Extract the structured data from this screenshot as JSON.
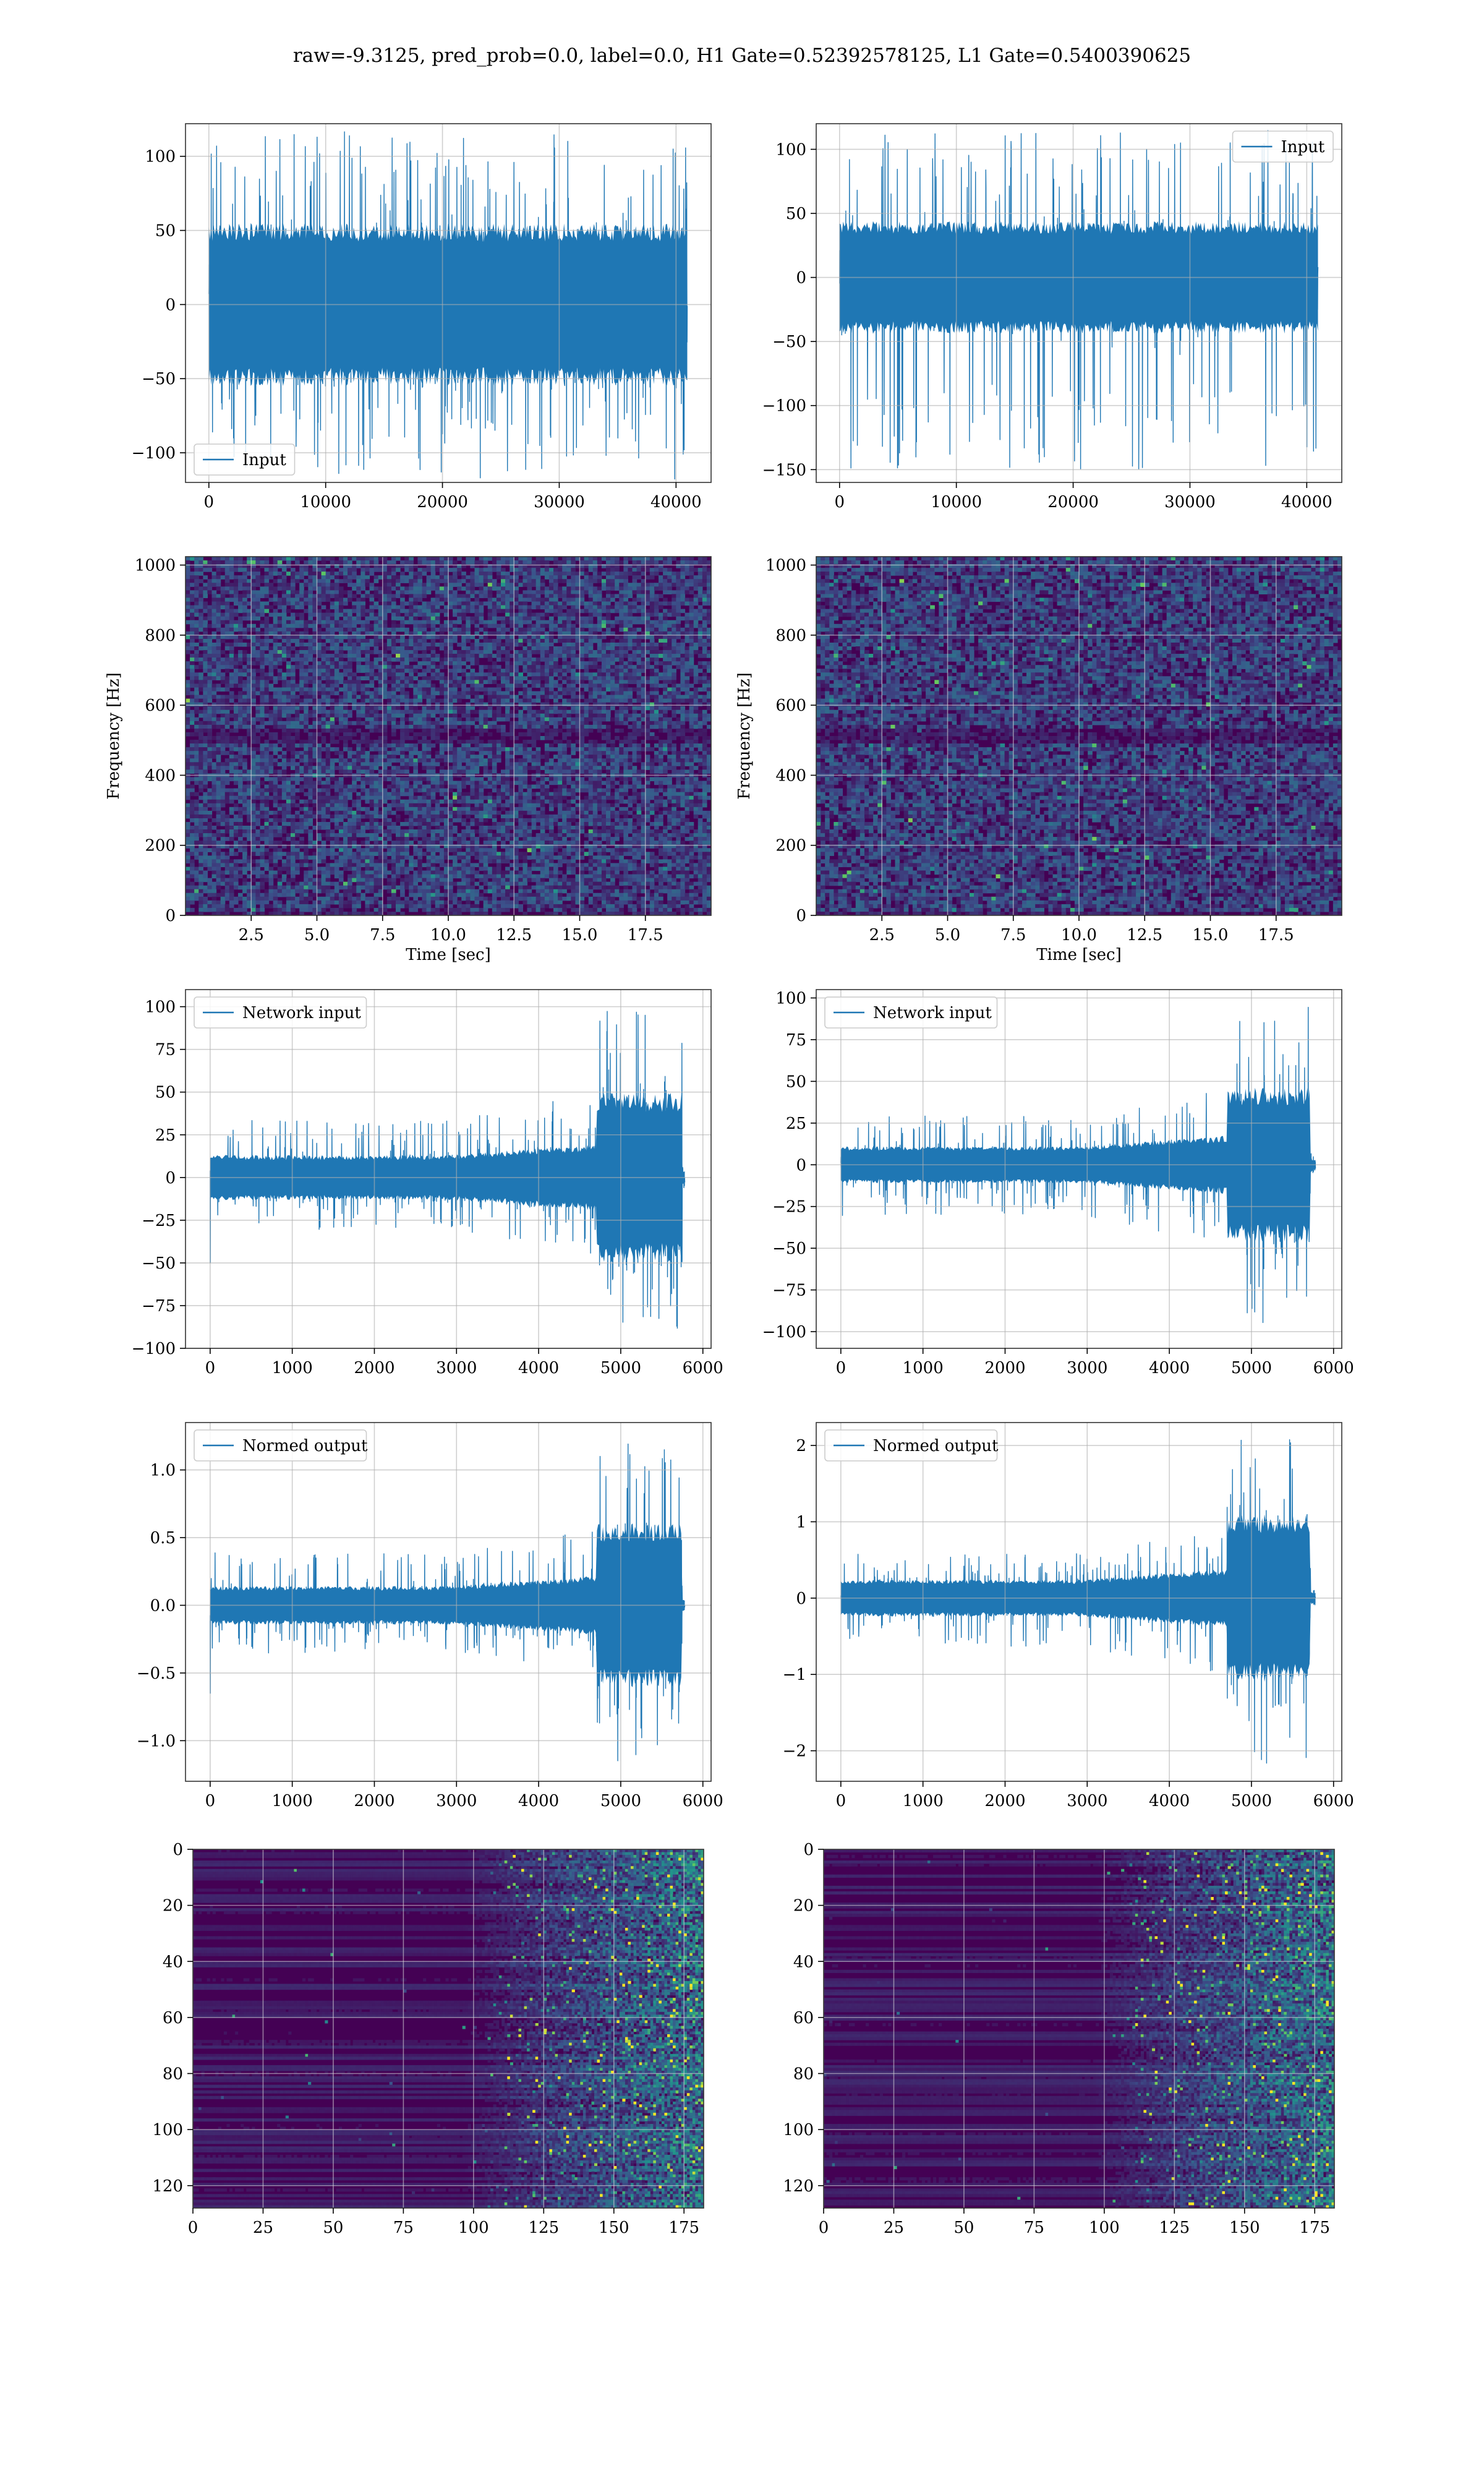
{
  "figure": {
    "suptitle": "raw=-9.3125, pred_prob=0.0, label=0.0, H1 Gate=0.52392578125, L1 Gate=0.5400390625",
    "colors": {
      "line": "#1f77b4",
      "grid": "#b0b0b0",
      "viridis": [
        "#440154",
        "#3b528b",
        "#21918c",
        "#5ec962",
        "#fde725"
      ]
    }
  },
  "chart_data": [
    {
      "id": "input-left",
      "type": "line",
      "legend": "lower-left",
      "series": [
        {
          "name": "Input"
        }
      ],
      "xlim": [
        -2000,
        43000
      ],
      "ylim": [
        -120,
        122
      ],
      "xticks": [
        0,
        10000,
        20000,
        30000,
        40000
      ],
      "xtick_labels": [
        "0",
        "10000",
        "20000",
        "30000",
        "40000"
      ],
      "yticks": [
        -100,
        -50,
        0,
        50,
        100
      ],
      "ytick_labels": [
        "−100",
        "−50",
        "0",
        "50",
        "100"
      ],
      "signal": {
        "x_start": 0,
        "x_end": 40960,
        "core": 50,
        "peak_max": 118,
        "peak_min": -118
      }
    },
    {
      "id": "input-right",
      "type": "line",
      "legend": "upper-right",
      "series": [
        {
          "name": "Input"
        }
      ],
      "xlim": [
        -2000,
        43000
      ],
      "ylim": [
        -160,
        120
      ],
      "xticks": [
        0,
        10000,
        20000,
        30000,
        40000
      ],
      "xtick_labels": [
        "0",
        "10000",
        "20000",
        "30000",
        "40000"
      ],
      "yticks": [
        -150,
        -100,
        -50,
        0,
        50,
        100
      ],
      "ytick_labels": [
        "−150",
        "−100",
        "−50",
        "0",
        "50",
        "100"
      ],
      "signal": {
        "x_start": 0,
        "x_end": 40960,
        "core": 40,
        "peak_max": 115,
        "peak_min": -150
      }
    },
    {
      "id": "spectrogram-left",
      "type": "heatmap",
      "xlabel": "Time [sec]",
      "ylabel": "Frequency [Hz]",
      "xlim": [
        0,
        20
      ],
      "ylim": [
        0,
        1024
      ],
      "xticks": [
        2.5,
        5.0,
        7.5,
        10.0,
        12.5,
        15.0,
        17.5
      ],
      "xtick_labels": [
        "2.5",
        "5.0",
        "7.5",
        "10.0",
        "12.5",
        "15.0",
        "17.5"
      ],
      "yticks": [
        0,
        200,
        400,
        600,
        800,
        1000
      ],
      "ytick_labels": [
        "0",
        "200",
        "400",
        "600",
        "800",
        "1000"
      ]
    },
    {
      "id": "spectrogram-right",
      "type": "heatmap",
      "xlabel": "Time [sec]",
      "ylabel": "Frequency [Hz]",
      "xlim": [
        0,
        20
      ],
      "ylim": [
        0,
        1024
      ],
      "xticks": [
        2.5,
        5.0,
        7.5,
        10.0,
        12.5,
        15.0,
        17.5
      ],
      "xtick_labels": [
        "2.5",
        "5.0",
        "7.5",
        "10.0",
        "12.5",
        "15.0",
        "17.5"
      ],
      "yticks": [
        0,
        200,
        400,
        600,
        800,
        1000
      ],
      "ytick_labels": [
        "0",
        "200",
        "400",
        "600",
        "800",
        "1000"
      ]
    },
    {
      "id": "network-input-left",
      "type": "line",
      "legend": "upper-left",
      "series": [
        {
          "name": "Network input"
        }
      ],
      "xlim": [
        -300,
        6100
      ],
      "ylim": [
        -100,
        110
      ],
      "xticks": [
        0,
        1000,
        2000,
        3000,
        4000,
        5000,
        6000
      ],
      "xtick_labels": [
        "0",
        "1000",
        "2000",
        "3000",
        "4000",
        "5000",
        "6000"
      ],
      "yticks": [
        -100,
        -75,
        -50,
        -25,
        0,
        25,
        50,
        75,
        100
      ],
      "ytick_labels": [
        "−100",
        "−75",
        "−50",
        "−25",
        "0",
        "25",
        "50",
        "75",
        "100"
      ],
      "signal": {
        "x_start": 0,
        "x_end": 5780,
        "burst_start": 4700,
        "burst_end": 5750,
        "core_low": 12,
        "core_mid": 18,
        "core_burst": 45,
        "peak_max": 98,
        "peak_min": -90,
        "spike_at_start": -50
      }
    },
    {
      "id": "network-input-right",
      "type": "line",
      "legend": "upper-left",
      "series": [
        {
          "name": "Network input"
        }
      ],
      "xlim": [
        -300,
        6100
      ],
      "ylim": [
        -110,
        105
      ],
      "xticks": [
        0,
        1000,
        2000,
        3000,
        4000,
        5000,
        6000
      ],
      "xtick_labels": [
        "0",
        "1000",
        "2000",
        "3000",
        "4000",
        "5000",
        "6000"
      ],
      "yticks": [
        -100,
        -75,
        -50,
        -25,
        0,
        25,
        50,
        75,
        100
      ],
      "ytick_labels": [
        "−100",
        "−75",
        "−50",
        "−25",
        "0",
        "25",
        "50",
        "75",
        "100"
      ],
      "signal": {
        "x_start": 0,
        "x_end": 5780,
        "burst_start": 4700,
        "burst_end": 5720,
        "core_low": 10,
        "core_mid": 16,
        "core_burst": 42,
        "peak_max": 96,
        "peak_min": -100
      }
    },
    {
      "id": "normed-output-left",
      "type": "line",
      "legend": "upper-left",
      "series": [
        {
          "name": "Normed output"
        }
      ],
      "xlim": [
        -300,
        6100
      ],
      "ylim": [
        -1.3,
        1.35
      ],
      "xticks": [
        0,
        1000,
        2000,
        3000,
        4000,
        5000,
        6000
      ],
      "xtick_labels": [
        "0",
        "1000",
        "2000",
        "3000",
        "4000",
        "5000",
        "6000"
      ],
      "yticks": [
        -1.0,
        -0.5,
        0.0,
        0.5,
        1.0
      ],
      "ytick_labels": [
        "−1.0",
        "−0.5",
        "0.0",
        "0.5",
        "1.0"
      ],
      "signal": {
        "x_start": 0,
        "x_end": 5780,
        "burst_start": 4700,
        "burst_end": 5750,
        "core_low": 0.13,
        "core_mid": 0.2,
        "core_burst": 0.55,
        "peak_max": 1.28,
        "peak_min": -1.18,
        "spike_at_start": -0.65
      }
    },
    {
      "id": "normed-output-right",
      "type": "line",
      "legend": "upper-left",
      "series": [
        {
          "name": "Normed output"
        }
      ],
      "xlim": [
        -300,
        6100
      ],
      "ylim": [
        -2.4,
        2.3
      ],
      "xticks": [
        0,
        1000,
        2000,
        3000,
        4000,
        5000,
        6000
      ],
      "xtick_labels": [
        "0",
        "1000",
        "2000",
        "3000",
        "4000",
        "5000",
        "6000"
      ],
      "yticks": [
        -2,
        -1,
        0,
        1,
        2
      ],
      "ytick_labels": [
        "−2",
        "−1",
        "0",
        "1",
        "2"
      ],
      "signal": {
        "x_start": 0,
        "x_end": 5780,
        "burst_start": 4700,
        "burst_end": 5720,
        "core_low": 0.22,
        "core_mid": 0.35,
        "core_burst": 1.0,
        "peak_max": 2.1,
        "peak_min": -2.25
      }
    },
    {
      "id": "feature-map-left",
      "type": "heatmap",
      "xlim": [
        0,
        182
      ],
      "ylim": [
        128,
        0
      ],
      "xticks": [
        0,
        25,
        50,
        75,
        100,
        125,
        150,
        175
      ],
      "xtick_labels": [
        "0",
        "25",
        "50",
        "75",
        "100",
        "125",
        "150",
        "175"
      ],
      "yticks": [
        0,
        20,
        40,
        60,
        80,
        100,
        120
      ],
      "ytick_labels": [
        "0",
        "20",
        "40",
        "60",
        "80",
        "100",
        "120"
      ]
    },
    {
      "id": "feature-map-right",
      "type": "heatmap",
      "xlim": [
        0,
        182
      ],
      "ylim": [
        128,
        0
      ],
      "xticks": [
        0,
        25,
        50,
        75,
        100,
        125,
        150,
        175
      ],
      "xtick_labels": [
        "0",
        "25",
        "50",
        "75",
        "100",
        "125",
        "150",
        "175"
      ],
      "yticks": [
        0,
        20,
        40,
        60,
        80,
        100,
        120
      ],
      "ytick_labels": [
        "0",
        "20",
        "40",
        "60",
        "80",
        "100",
        "120"
      ]
    }
  ]
}
